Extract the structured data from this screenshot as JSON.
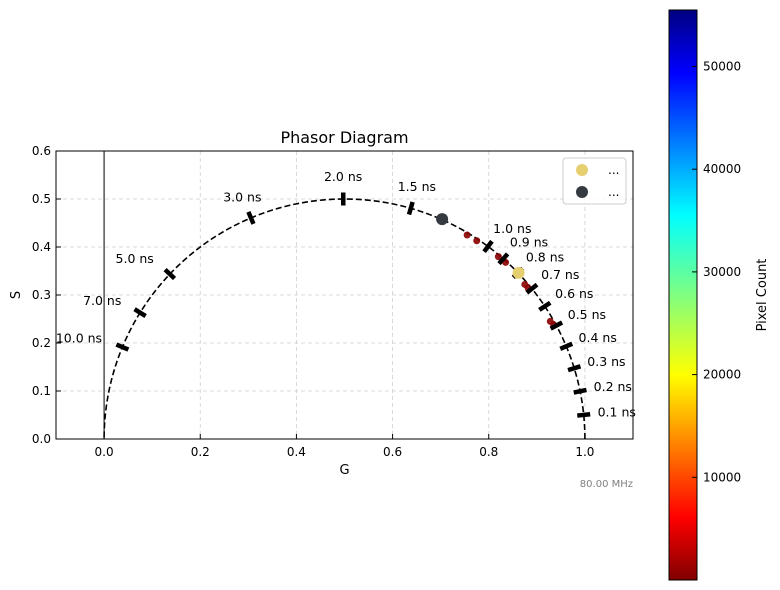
{
  "chart_data": {
    "type": "scatter",
    "title": "Phasor Diagram",
    "xlabel": "G",
    "ylabel": "S",
    "xlim": [
      -0.1,
      1.1
    ],
    "ylim": [
      0.0,
      0.6
    ],
    "xticks": [
      "0.0",
      "0.2",
      "0.4",
      "0.6",
      "0.8",
      "1.0"
    ],
    "yticks": [
      "0.0",
      "0.1",
      "0.2",
      "0.3",
      "0.4",
      "0.5",
      "0.6"
    ],
    "xtick_values": [
      0.0,
      0.2,
      0.4,
      0.6,
      0.8,
      1.0
    ],
    "ytick_values": [
      0.0,
      0.1,
      0.2,
      0.3,
      0.4,
      0.5,
      0.6
    ],
    "grid": true,
    "frequency_label": "80.00 MHz",
    "universal_circle": {
      "center": [
        0.5,
        0.0
      ],
      "radius": 0.5
    },
    "lifetime_markers": [
      {
        "label": "0.1 ns",
        "g": 0.9975,
        "s": 0.0502
      },
      {
        "label": "0.2 ns",
        "g": 0.99,
        "s": 0.0995
      },
      {
        "label": "0.3 ns",
        "g": 0.9778,
        "s": 0.1474
      },
      {
        "label": "0.4 ns",
        "g": 0.9612,
        "s": 0.1932
      },
      {
        "label": "0.5 ns",
        "g": 0.9406,
        "s": 0.2363
      },
      {
        "label": "0.6 ns",
        "g": 0.9166,
        "s": 0.2764
      },
      {
        "label": "0.7 ns",
        "g": 0.8898,
        "s": 0.3131
      },
      {
        "label": "0.8 ns",
        "g": 0.8608,
        "s": 0.3461
      },
      {
        "label": "0.9 ns",
        "g": 0.8303,
        "s": 0.3755
      },
      {
        "label": "1.0 ns",
        "g": 0.7985,
        "s": 0.4011
      },
      {
        "label": "1.5 ns",
        "g": 0.6379,
        "s": 0.4807
      },
      {
        "label": "2.0 ns",
        "g": 0.4974,
        "s": 0.5
      },
      {
        "label": "3.0 ns",
        "g": 0.3054,
        "s": 0.4606
      },
      {
        "label": "5.0 ns",
        "g": 0.1367,
        "s": 0.3436
      },
      {
        "label": "7.0 ns",
        "g": 0.0749,
        "s": 0.2633
      },
      {
        "label": "10.0 ns",
        "g": 0.0381,
        "s": 0.1915
      }
    ],
    "pixel_cloud": {
      "points": [
        [
          0.755,
          0.425
        ],
        [
          0.775,
          0.413
        ],
        [
          0.82,
          0.38
        ],
        [
          0.835,
          0.368
        ],
        [
          0.875,
          0.322
        ],
        [
          0.882,
          0.314
        ],
        [
          0.928,
          0.245
        ],
        [
          0.935,
          0.238
        ]
      ],
      "color": "#8b0000"
    },
    "series": [
      {
        "name": "...",
        "color": "#e6cf70",
        "points": [
          [
            0.862,
            0.346
          ]
        ]
      },
      {
        "name": "...",
        "color": "#343a40",
        "points": [
          [
            0.703,
            0.458
          ]
        ]
      }
    ],
    "legend_position": "upper right",
    "colorbar": {
      "label": "Pixel Count",
      "min": 0,
      "max": 55500,
      "ticks": [
        "10000",
        "20000",
        "30000",
        "40000",
        "50000"
      ],
      "tick_values": [
        10000,
        20000,
        30000,
        40000,
        50000
      ],
      "colormap": "jet_r"
    }
  }
}
